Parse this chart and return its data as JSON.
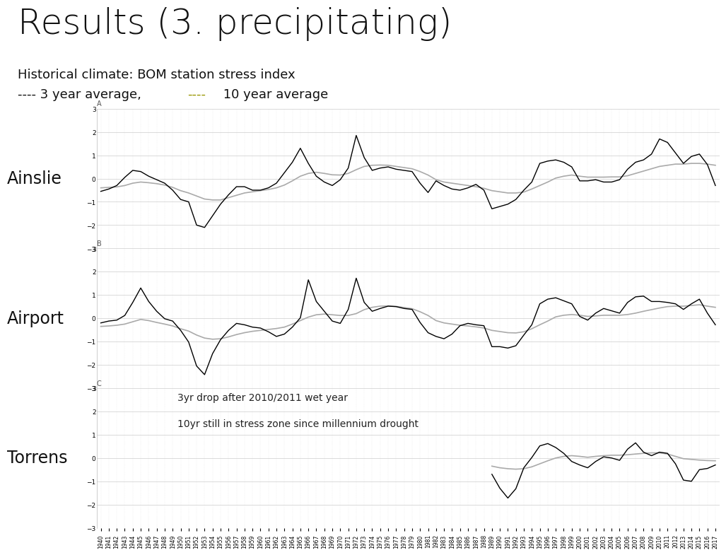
{
  "title": "Results (3. precipitating)",
  "subtitle1": "Historical climate: BOM station stress index",
  "subtitle2_black": "---- 3 year average,",
  "subtitle2_gold": "----",
  "subtitle2_end": " 10 year average",
  "station_labels": [
    "Ainslie",
    "Airport",
    "Torrens"
  ],
  "panel_letters": [
    "A",
    "B",
    "C"
  ],
  "years": [
    1940,
    1941,
    1942,
    1943,
    1944,
    1945,
    1946,
    1947,
    1948,
    1949,
    1950,
    1951,
    1952,
    1953,
    1954,
    1955,
    1956,
    1957,
    1958,
    1959,
    1960,
    1961,
    1962,
    1963,
    1964,
    1965,
    1966,
    1967,
    1968,
    1969,
    1970,
    1971,
    1972,
    1973,
    1974,
    1975,
    1976,
    1977,
    1978,
    1979,
    1980,
    1981,
    1982,
    1983,
    1984,
    1985,
    1986,
    1987,
    1988,
    1989,
    1990,
    1991,
    1992,
    1993,
    1994,
    1995,
    1996,
    1997,
    1998,
    1999,
    2000,
    2001,
    2002,
    2003,
    2004,
    2005,
    2006,
    2007,
    2008,
    2009,
    2010,
    2011,
    2012,
    2013,
    2014,
    2015,
    2016,
    2017
  ],
  "ainslie_3yr": [
    -0.55,
    -0.45,
    -0.3,
    0.05,
    0.35,
    0.3,
    0.1,
    -0.05,
    -0.2,
    -0.5,
    -0.9,
    -1.0,
    -2.0,
    -2.1,
    -1.6,
    -1.1,
    -0.7,
    -0.35,
    -0.35,
    -0.5,
    -0.5,
    -0.4,
    -0.2,
    0.25,
    0.7,
    1.3,
    0.65,
    0.1,
    -0.15,
    -0.3,
    -0.05,
    0.45,
    1.85,
    0.9,
    0.35,
    0.45,
    0.5,
    0.4,
    0.35,
    0.3,
    -0.2,
    -0.6,
    -0.1,
    -0.3,
    -0.45,
    -0.5,
    -0.4,
    -0.25,
    -0.5,
    -1.3,
    -1.2,
    -1.1,
    -0.9,
    -0.5,
    -0.15,
    0.65,
    0.75,
    0.8,
    0.7,
    0.5,
    -0.1,
    -0.1,
    -0.05,
    -0.15,
    -0.15,
    -0.05,
    0.4,
    0.7,
    0.8,
    1.05,
    1.7,
    1.55,
    1.1,
    0.65,
    0.95,
    1.05,
    0.6,
    -0.3
  ],
  "ainslie_10yr": [
    -0.4,
    -0.38,
    -0.36,
    -0.3,
    -0.2,
    -0.15,
    -0.18,
    -0.22,
    -0.28,
    -0.38,
    -0.52,
    -0.62,
    -0.75,
    -0.88,
    -0.92,
    -0.92,
    -0.82,
    -0.72,
    -0.62,
    -0.57,
    -0.52,
    -0.47,
    -0.4,
    -0.28,
    -0.1,
    0.1,
    0.22,
    0.27,
    0.22,
    0.16,
    0.15,
    0.22,
    0.38,
    0.52,
    0.57,
    0.58,
    0.57,
    0.52,
    0.47,
    0.42,
    0.3,
    0.15,
    -0.05,
    -0.15,
    -0.2,
    -0.25,
    -0.3,
    -0.35,
    -0.42,
    -0.52,
    -0.57,
    -0.62,
    -0.62,
    -0.58,
    -0.45,
    -0.3,
    -0.15,
    0.02,
    0.1,
    0.15,
    0.1,
    0.06,
    0.06,
    0.06,
    0.07,
    0.07,
    0.12,
    0.22,
    0.32,
    0.42,
    0.52,
    0.57,
    0.62,
    0.62,
    0.65,
    0.65,
    0.62,
    0.57
  ],
  "airport_3yr": [
    -0.2,
    -0.12,
    -0.08,
    0.12,
    0.68,
    1.3,
    0.72,
    0.3,
    -0.02,
    -0.12,
    -0.52,
    -1.02,
    -2.05,
    -2.42,
    -1.52,
    -0.92,
    -0.52,
    -0.22,
    -0.28,
    -0.38,
    -0.42,
    -0.58,
    -0.78,
    -0.68,
    -0.38,
    0.02,
    1.65,
    0.72,
    0.3,
    -0.12,
    -0.22,
    0.38,
    1.72,
    0.68,
    0.3,
    0.42,
    0.52,
    0.5,
    0.42,
    0.38,
    -0.18,
    -0.62,
    -0.78,
    -0.88,
    -0.68,
    -0.32,
    -0.22,
    -0.28,
    -0.32,
    -1.22,
    -1.22,
    -1.28,
    -1.18,
    -0.72,
    -0.28,
    0.62,
    0.82,
    0.88,
    0.75,
    0.62,
    0.08,
    -0.08,
    0.22,
    0.42,
    0.32,
    0.22,
    0.68,
    0.92,
    0.95,
    0.72,
    0.72,
    0.68,
    0.62,
    0.38,
    0.62,
    0.82,
    0.22,
    -0.28
  ],
  "airport_10yr": [
    -0.35,
    -0.33,
    -0.3,
    -0.25,
    -0.15,
    -0.05,
    -0.1,
    -0.18,
    -0.25,
    -0.33,
    -0.45,
    -0.55,
    -0.72,
    -0.85,
    -0.9,
    -0.88,
    -0.8,
    -0.7,
    -0.62,
    -0.56,
    -0.52,
    -0.48,
    -0.44,
    -0.38,
    -0.25,
    -0.1,
    0.05,
    0.15,
    0.18,
    0.15,
    0.12,
    0.12,
    0.2,
    0.37,
    0.47,
    0.52,
    0.53,
    0.51,
    0.46,
    0.41,
    0.28,
    0.12,
    -0.1,
    -0.2,
    -0.25,
    -0.3,
    -0.33,
    -0.37,
    -0.42,
    -0.52,
    -0.57,
    -0.62,
    -0.63,
    -0.58,
    -0.45,
    -0.28,
    -0.12,
    0.06,
    0.13,
    0.16,
    0.13,
    0.08,
    0.1,
    0.13,
    0.13,
    0.13,
    0.16,
    0.22,
    0.3,
    0.37,
    0.44,
    0.5,
    0.52,
    0.52,
    0.55,
    0.58,
    0.52,
    0.47
  ],
  "torrens_3yr": [
    null,
    null,
    null,
    null,
    null,
    null,
    null,
    null,
    null,
    null,
    null,
    null,
    null,
    null,
    null,
    null,
    null,
    null,
    null,
    null,
    null,
    null,
    null,
    null,
    null,
    null,
    null,
    null,
    null,
    null,
    null,
    null,
    null,
    null,
    null,
    null,
    null,
    null,
    null,
    null,
    null,
    null,
    null,
    null,
    null,
    null,
    null,
    null,
    null,
    -0.7,
    -1.3,
    -1.72,
    -1.32,
    -0.42,
    0.02,
    0.52,
    0.62,
    0.45,
    0.2,
    -0.15,
    -0.3,
    -0.42,
    -0.15,
    0.05,
    0.0,
    -0.1,
    0.38,
    0.65,
    0.25,
    0.1,
    0.25,
    0.2,
    -0.25,
    -0.95,
    -1.0,
    -0.5,
    -0.45,
    -0.3
  ],
  "torrens_10yr": [
    null,
    null,
    null,
    null,
    null,
    null,
    null,
    null,
    null,
    null,
    null,
    null,
    null,
    null,
    null,
    null,
    null,
    null,
    null,
    null,
    null,
    null,
    null,
    null,
    null,
    null,
    null,
    null,
    null,
    null,
    null,
    null,
    null,
    null,
    null,
    null,
    null,
    null,
    null,
    null,
    null,
    null,
    null,
    null,
    null,
    null,
    null,
    null,
    null,
    -0.35,
    -0.42,
    -0.46,
    -0.48,
    -0.46,
    -0.38,
    -0.25,
    -0.12,
    -0.0,
    0.07,
    0.1,
    0.07,
    0.03,
    0.07,
    0.1,
    0.12,
    0.12,
    0.14,
    0.17,
    0.2,
    0.22,
    0.22,
    0.17,
    0.07,
    -0.03,
    -0.06,
    -0.09,
    -0.11,
    -0.12
  ],
  "annotation_text1": "3yr drop after 2010/2011 wet year",
  "annotation_text2": "10yr still in stress zone since millennium drought",
  "color_3yr": "#000000",
  "color_10yr": "#aaaaaa",
  "color_gold": "#999600",
  "ylim": [
    -3,
    3
  ],
  "yticks": [
    -3,
    -2,
    -1,
    0,
    1,
    2,
    3
  ],
  "background_color": "#ffffff"
}
